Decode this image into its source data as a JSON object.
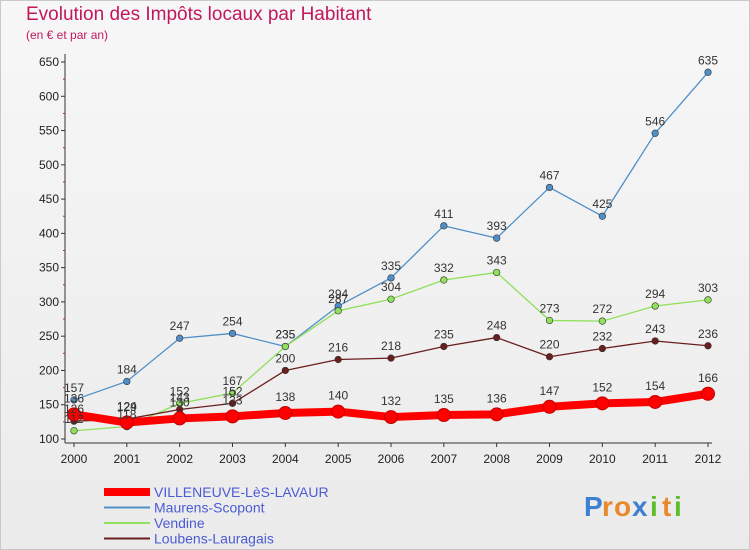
{
  "header": {
    "title": "Evolution des Impôts locaux par Habitant",
    "subtitle": "(en € et par an)"
  },
  "brand": {
    "letters": [
      "P",
      "r",
      "o",
      "x",
      "i",
      "t",
      "i"
    ]
  },
  "chart_data": {
    "type": "line",
    "title": "Evolution des Impôts locaux par Habitant",
    "subtitle": "(en € et par an)",
    "x": [
      "2000",
      "2001",
      "2002",
      "2003",
      "2004",
      "2005",
      "2006",
      "2007",
      "2008",
      "2009",
      "2010",
      "2011",
      "2012"
    ],
    "ylim": [
      100,
      650
    ],
    "yticks": [
      100,
      150,
      200,
      250,
      300,
      350,
      400,
      450,
      500,
      550,
      600,
      650
    ],
    "grid": false,
    "legend_position": "bottom-left",
    "series": [
      {
        "name": "VILLENEUVE-LèS-LAVAUR",
        "color": "#ff0000",
        "width": 8,
        "values": [
          136,
          124,
          130,
          133,
          138,
          140,
          132,
          135,
          136,
          147,
          152,
          154,
          166
        ]
      },
      {
        "name": "Maurens-Scopont",
        "color": "#4f8fc8",
        "width": 1.3,
        "values": [
          157,
          184,
          247,
          254,
          235,
          294,
          335,
          411,
          393,
          467,
          425,
          546,
          635
        ]
      },
      {
        "name": "Vendine",
        "color": "#8fe05a",
        "width": 1.3,
        "values": [
          112,
          118,
          152,
          167,
          235,
          287,
          304,
          332,
          343,
          273,
          272,
          294,
          303
        ]
      },
      {
        "name": "Loubens-Lauragais",
        "color": "#6b1e1e",
        "width": 1.3,
        "values": [
          126,
          129,
          143,
          152,
          200,
          216,
          218,
          235,
          248,
          220,
          232,
          243,
          236
        ]
      }
    ]
  }
}
